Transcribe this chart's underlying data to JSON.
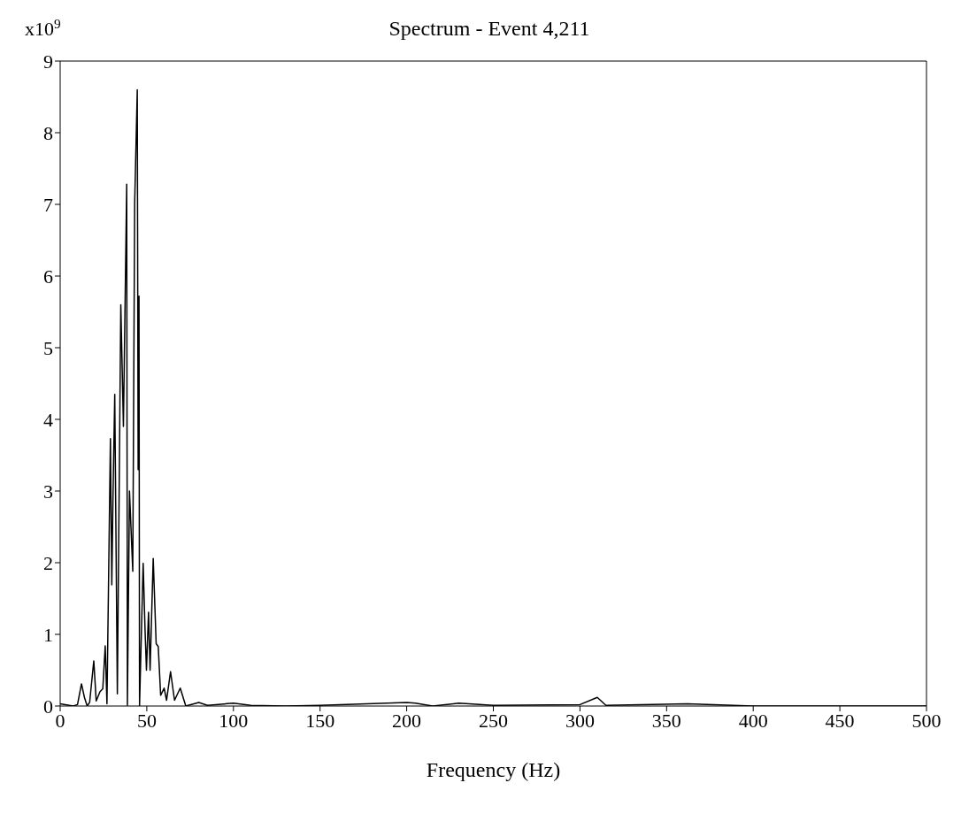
{
  "chart_data": {
    "type": "line",
    "title": "Spectrum - Event 4,211",
    "xlabel": "Frequency (Hz)",
    "annotations": [
      "x10$^{9}$"
    ],
    "x": [
      0,
      7.5,
      10,
      12.3,
      14,
      15.6,
      17,
      19.4,
      20.8,
      23,
      24.6,
      26,
      27,
      29,
      29.8,
      30.5,
      31.5,
      33,
      35,
      36.5,
      38.4,
      38.8,
      40,
      41.9,
      43,
      44.5,
      45,
      45.5,
      45.8,
      47.9,
      49,
      49.8,
      51,
      51.9,
      53.7,
      55.4,
      56.6,
      58,
      60,
      61.4,
      63.7,
      66,
      69.3,
      72.5,
      80,
      85,
      100,
      110,
      130,
      150,
      200,
      205,
      215,
      230,
      250,
      300,
      310,
      315,
      362,
      400,
      500
    ],
    "series": [
      {
        "color": "#000000",
        "values": [
          0.03,
          0,
          0.02,
          0.31,
          0.12,
          0,
          0.05,
          0.63,
          0.07,
          0.2,
          0.24,
          0.84,
          0.03,
          3.73,
          1.69,
          2.94,
          4.35,
          0.17,
          5.6,
          3.9,
          7.28,
          0.01,
          3.0,
          1.88,
          7.02,
          8.6,
          3.3,
          5.72,
          0,
          1.99,
          1.05,
          0.5,
          1.31,
          0.5,
          2.06,
          0.87,
          0.83,
          0.15,
          0.25,
          0.08,
          0.48,
          0.08,
          0.25,
          0,
          0.05,
          0.01,
          0.04,
          0.01,
          0,
          0.01,
          0.05,
          0.04,
          0,
          0.04,
          0.01,
          0.02,
          0.12,
          0.01,
          0.03,
          0,
          0
        ]
      }
    ],
    "xlim": [
      0,
      500
    ],
    "xticks": [
      0,
      50,
      100,
      150,
      200,
      250,
      300,
      350,
      400,
      450,
      500
    ],
    "ylim": [
      0,
      9
    ],
    "yticks": [
      0,
      1,
      2,
      3,
      4,
      5,
      6,
      7,
      8,
      9
    ],
    "grid": false,
    "legend": false,
    "marker": "none",
    "line_style": "solid"
  }
}
